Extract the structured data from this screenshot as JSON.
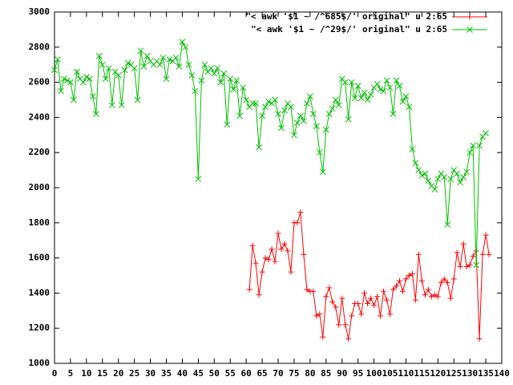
{
  "chart_data": {
    "type": "line",
    "x": [
      0,
      1,
      2,
      3,
      4,
      5,
      6,
      7,
      8,
      9,
      10,
      11,
      12,
      13,
      14,
      15,
      16,
      17,
      18,
      19,
      20,
      21,
      22,
      23,
      24,
      25,
      26,
      27,
      28,
      29,
      30,
      31,
      32,
      33,
      34,
      35,
      36,
      37,
      38,
      39,
      40,
      41,
      42,
      43,
      44,
      45,
      46,
      47,
      48,
      49,
      50,
      51,
      52,
      53,
      54,
      55,
      56,
      57,
      58,
      59,
      60,
      61,
      62,
      63,
      64,
      65,
      66,
      67,
      68,
      69,
      70,
      71,
      72,
      73,
      74,
      75,
      76,
      77,
      78,
      79,
      80,
      81,
      82,
      83,
      84,
      85,
      86,
      87,
      88,
      89,
      90,
      91,
      92,
      93,
      94,
      95,
      96,
      97,
      98,
      99,
      100,
      101,
      102,
      103,
      104,
      105,
      106,
      107,
      108,
      109,
      110,
      111,
      112,
      113,
      114,
      115,
      116,
      117,
      118,
      119,
      120,
      121,
      122,
      123,
      124,
      125,
      126,
      127,
      128,
      129,
      130,
      131,
      132,
      133,
      134,
      135,
      136
    ],
    "series": [
      {
        "name": "\"< awk '$1 ~ /^685$/' original\" u 2:65",
        "color": "#ff0000",
        "marker": "plus",
        "values": [
          null,
          null,
          null,
          null,
          null,
          null,
          null,
          null,
          null,
          null,
          null,
          null,
          null,
          null,
          null,
          null,
          null,
          null,
          null,
          null,
          null,
          null,
          null,
          null,
          null,
          null,
          null,
          null,
          null,
          null,
          null,
          null,
          null,
          null,
          null,
          null,
          null,
          null,
          null,
          null,
          null,
          null,
          null,
          null,
          null,
          null,
          null,
          null,
          null,
          null,
          null,
          null,
          null,
          null,
          null,
          null,
          null,
          null,
          null,
          null,
          null,
          1420,
          1670,
          1570,
          1390,
          1520,
          1600,
          1590,
          1650,
          1580,
          1740,
          1650,
          1680,
          1640,
          1520,
          1800,
          1800,
          1860,
          1620,
          1420,
          1410,
          1410,
          1270,
          1280,
          1150,
          1380,
          1430,
          1350,
          1320,
          1220,
          1370,
          1220,
          1140,
          1270,
          1340,
          1340,
          1280,
          1400,
          1340,
          1370,
          1330,
          1380,
          1270,
          1410,
          1360,
          1280,
          1420,
          1440,
          1470,
          1410,
          1480,
          1500,
          1510,
          1360,
          1620,
          1470,
          1390,
          1420,
          1380,
          1390,
          1380,
          1460,
          1480,
          1460,
          1370,
          1480,
          1630,
          1550,
          1680,
          1550,
          1560,
          1610,
          1640,
          1140,
          1620,
          1730,
          1620
        ]
      },
      {
        "name": "\"< awk '$1 ~ /^29$/' original\" u 2:65",
        "color": "#00c000",
        "marker": "cross",
        "values": [
          2670,
          2730,
          2550,
          2620,
          2610,
          2600,
          2500,
          2660,
          2620,
          2600,
          2630,
          2620,
          2520,
          2420,
          2750,
          2700,
          2620,
          2680,
          2470,
          2660,
          2640,
          2470,
          2670,
          2710,
          2700,
          2680,
          2500,
          2780,
          2690,
          2750,
          2720,
          2700,
          2720,
          2700,
          2740,
          2620,
          2730,
          2720,
          2740,
          2690,
          2830,
          2800,
          2700,
          2640,
          2550,
          2050,
          2610,
          2700,
          2660,
          2680,
          2650,
          2680,
          2600,
          2650,
          2360,
          2620,
          2560,
          2610,
          2410,
          2570,
          2500,
          2460,
          2480,
          2480,
          2230,
          2410,
          2460,
          2490,
          2480,
          2500,
          2420,
          2340,
          2440,
          2480,
          2460,
          2300,
          2370,
          2410,
          2380,
          2480,
          2520,
          2420,
          2350,
          2200,
          2090,
          2330,
          2420,
          2450,
          2500,
          2470,
          2620,
          2600,
          2390,
          2600,
          2510,
          2580,
          2510,
          2540,
          2500,
          2530,
          2570,
          2590,
          2560,
          2550,
          2610,
          2570,
          2420,
          2610,
          2580,
          2490,
          2520,
          2460,
          2220,
          2140,
          2100,
          2070,
          2080,
          2040,
          2010,
          1990,
          2050,
          2080,
          2060,
          1790,
          2050,
          2100,
          2080,
          2030,
          2060,
          2090,
          2200,
          2240,
          1560,
          2240,
          2290,
          2310,
          null
        ]
      }
    ],
    "xlim": [
      0,
      140
    ],
    "xticks": [
      0,
      5,
      10,
      15,
      20,
      25,
      30,
      35,
      40,
      45,
      50,
      55,
      60,
      65,
      70,
      75,
      80,
      85,
      90,
      95,
      100,
      105,
      110,
      115,
      120,
      125,
      130,
      135,
      140
    ],
    "ylim": [
      1000,
      3000
    ],
    "yticks": [
      1000,
      1200,
      1400,
      1600,
      1800,
      2000,
      2200,
      2400,
      2600,
      2800,
      3000
    ],
    "legend": "top-right"
  }
}
